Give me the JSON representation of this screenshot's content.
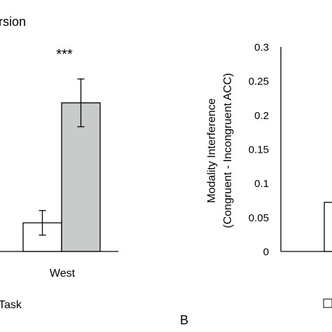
{
  "chart_data": [
    {
      "type": "bar",
      "panel": "left",
      "title_fragment": "rsion",
      "categories": [
        "West"
      ],
      "series": [
        {
          "color": "#ffffff",
          "values": [
            0.042
          ],
          "error": [
            0.018
          ]
        },
        {
          "color": "#c8cbc9",
          "values": [
            0.218
          ],
          "error": [
            0.035
          ]
        }
      ],
      "significance": "***",
      "legend_fragment": "Task",
      "ylim": [
        0,
        0.3
      ]
    },
    {
      "type": "bar",
      "panel": "right",
      "panel_label": "B",
      "ylabel_line1": "Modality Interference",
      "ylabel_line2": "(Congruent - Incongruent ACC)",
      "ylim": [
        0,
        0.3
      ],
      "yticks": [
        "0",
        "0.05",
        "0.1",
        "0.15",
        "0.2",
        "0.25",
        "0.3"
      ],
      "series": [
        {
          "color": "#ffffff",
          "values": [
            0.072
          ]
        }
      ]
    }
  ]
}
